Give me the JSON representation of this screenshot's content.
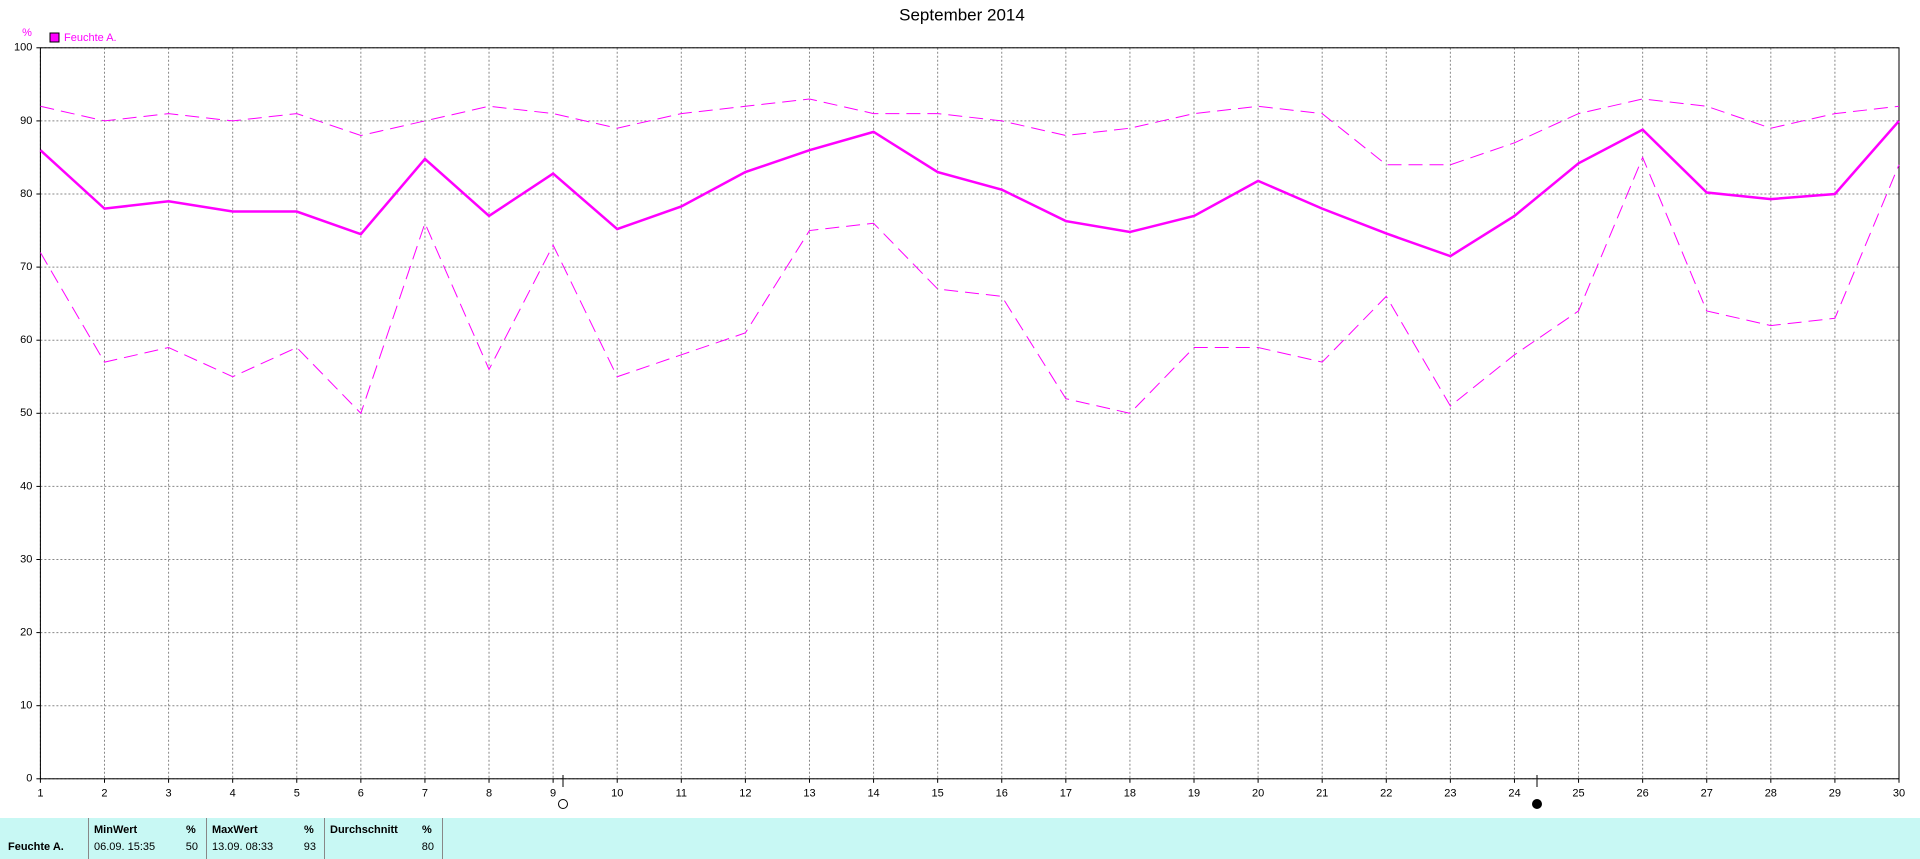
{
  "chart_data": {
    "type": "line",
    "title": "September 2014",
    "ylabel": "%",
    "x": [
      1,
      2,
      3,
      4,
      5,
      6,
      7,
      8,
      9,
      10,
      11,
      12,
      13,
      14,
      15,
      16,
      17,
      18,
      19,
      20,
      21,
      22,
      23,
      24,
      25,
      26,
      27,
      28,
      29,
      30
    ],
    "xlim": [
      1,
      30
    ],
    "xticks": [
      1,
      2,
      3,
      4,
      5,
      6,
      7,
      8,
      9,
      10,
      11,
      12,
      13,
      14,
      15,
      16,
      17,
      18,
      19,
      20,
      21,
      22,
      23,
      24,
      25,
      26,
      27,
      28,
      29,
      30
    ],
    "ylim": [
      0,
      100
    ],
    "yticks": [
      0,
      10,
      20,
      30,
      40,
      50,
      60,
      70,
      80,
      90,
      100
    ],
    "grid": true,
    "series": [
      {
        "name": "Feuchte A.",
        "color": "#ff00ff",
        "style": "solid",
        "values": [
          86,
          78,
          79,
          77.6,
          77.6,
          74.5,
          84.8,
          77,
          82.8,
          75.2,
          78.3,
          83,
          86,
          88.5,
          83,
          80.6,
          76.3,
          74.8,
          77,
          81.8,
          78,
          74.6,
          71.5,
          77,
          84.2,
          88.8,
          80.2,
          79.3,
          80,
          90
        ]
      },
      {
        "color": "#ff00ff",
        "style": "dashed",
        "values": [
          92,
          90,
          91,
          90,
          91,
          88,
          90,
          92,
          91,
          89,
          91,
          92,
          93,
          91,
          91,
          90,
          88,
          89,
          91,
          92,
          91,
          84,
          84,
          87,
          91,
          93,
          92,
          89,
          91,
          92
        ]
      },
      {
        "color": "#ff00ff",
        "style": "dashed",
        "values": [
          72,
          57,
          59,
          55,
          59,
          50,
          76,
          56,
          73,
          55,
          58,
          61,
          75,
          76,
          67,
          66,
          52,
          50,
          59,
          59,
          57,
          66,
          51,
          58,
          64,
          85,
          64,
          62,
          63,
          84
        ]
      }
    ]
  },
  "summary": {
    "row_label": "Feuchte A.",
    "columns": [
      {
        "header": "MinWert",
        "unit": "%",
        "time": "06.09.  15:35",
        "value": 50
      },
      {
        "header": "MaxWert",
        "unit": "%",
        "time": "13.09.  08:33",
        "value": 93
      },
      {
        "header": "Durchschnitt",
        "unit": "%",
        "value": 80
      }
    ]
  }
}
